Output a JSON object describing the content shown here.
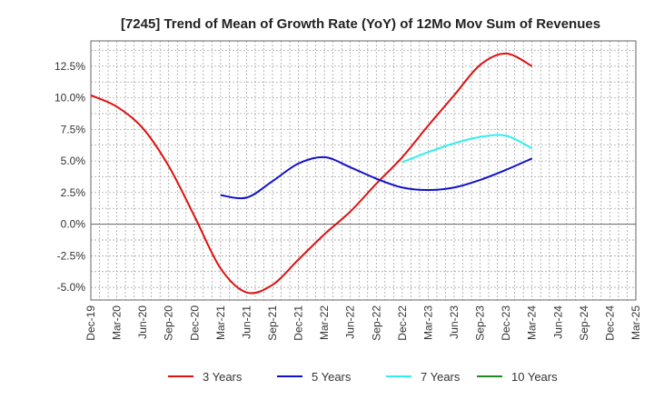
{
  "chart_data": {
    "type": "line",
    "title": "[7245]  Trend of Mean of Growth Rate (YoY) of 12Mo Mov Sum of Revenues",
    "xlabel": "",
    "ylabel": "",
    "categories": [
      "Dec-19",
      "Mar-20",
      "Jun-20",
      "Sep-20",
      "Dec-20",
      "Mar-21",
      "Jun-21",
      "Sep-21",
      "Dec-21",
      "Mar-22",
      "Jun-22",
      "Sep-22",
      "Dec-22",
      "Mar-23",
      "Jun-23",
      "Sep-23",
      "Dec-23",
      "Mar-24",
      "Jun-24",
      "Sep-24",
      "Dec-24",
      "Mar-25"
    ],
    "y_ticks": [
      12.5,
      10.0,
      7.5,
      5.0,
      2.5,
      0.0,
      -2.5,
      -5.0
    ],
    "y_tick_labels": [
      "12.5%",
      "10.0%",
      "7.5%",
      "5.0%",
      "2.5%",
      "0.0%",
      "-2.5%",
      "-5.0%"
    ],
    "ylim": [
      -6.0,
      14.5
    ],
    "grid": true,
    "legend_position": "bottom",
    "series": [
      {
        "name": "3 Years",
        "color": "#dd1111",
        "values": [
          10.2,
          9.3,
          7.6,
          4.6,
          0.6,
          -3.5,
          -5.4,
          -4.8,
          -2.8,
          -0.8,
          1.0,
          3.2,
          5.3,
          7.8,
          10.2,
          12.6,
          13.5,
          12.5,
          null,
          null,
          null,
          null
        ]
      },
      {
        "name": "5 Years",
        "color": "#1111cc",
        "values": [
          null,
          null,
          null,
          null,
          null,
          2.3,
          2.1,
          3.4,
          4.8,
          5.3,
          4.5,
          3.6,
          2.9,
          2.7,
          2.9,
          3.5,
          4.3,
          5.2,
          null,
          null,
          null,
          null
        ]
      },
      {
        "name": "7 Years",
        "color": "#33eeee",
        "values": [
          null,
          null,
          null,
          null,
          null,
          null,
          null,
          null,
          null,
          null,
          null,
          null,
          4.9,
          5.7,
          6.4,
          6.9,
          7.0,
          6.0,
          null,
          null,
          null,
          null
        ]
      },
      {
        "name": "10 Years",
        "color": "#228822",
        "values": [
          null,
          null,
          null,
          null,
          null,
          null,
          null,
          null,
          null,
          null,
          null,
          null,
          null,
          null,
          null,
          null,
          null,
          null,
          null,
          null,
          null,
          null
        ]
      }
    ]
  }
}
